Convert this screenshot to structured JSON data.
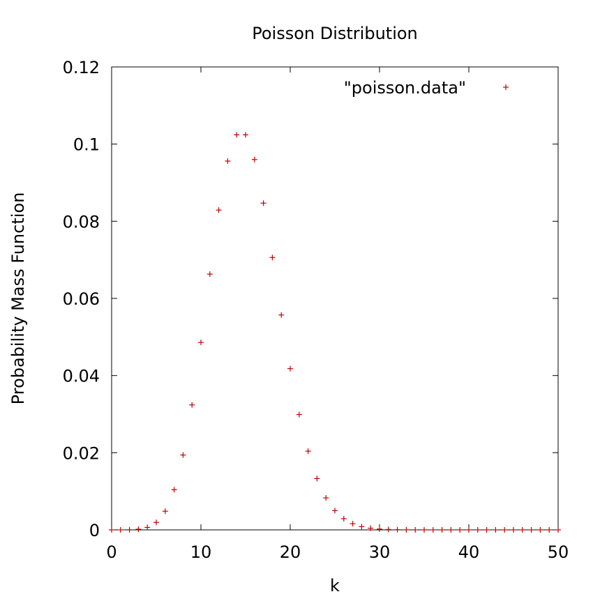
{
  "chart_data": {
    "type": "scatter",
    "title": "Poisson Distribution",
    "xlabel": "k",
    "ylabel": "Probability Mass Function",
    "xlim": [
      0,
      50
    ],
    "ylim": [
      0,
      0.12
    ],
    "xticks": [
      0,
      10,
      20,
      30,
      40,
      50
    ],
    "xtick_labels": [
      "0",
      "10",
      "20",
      "30",
      "40",
      "50"
    ],
    "yticks": [
      0,
      0.02,
      0.04,
      0.06,
      0.08,
      0.1,
      0.12
    ],
    "ytick_labels": [
      "0",
      "0.02",
      "0.04",
      "0.06",
      "0.08",
      "0.1",
      "0.12"
    ],
    "grid": false,
    "legend_position": "top-right",
    "series": [
      {
        "name": "\"poisson.data\"",
        "color": "#c00000",
        "marker": "plus",
        "x": [
          0,
          1,
          2,
          3,
          4,
          5,
          6,
          7,
          8,
          9,
          10,
          11,
          12,
          13,
          14,
          15,
          16,
          17,
          18,
          19,
          20,
          21,
          22,
          23,
          24,
          25,
          26,
          27,
          28,
          29,
          30,
          31,
          32,
          33,
          34,
          35,
          36,
          37,
          38,
          39,
          40,
          41,
          42,
          43,
          44,
          45,
          46,
          47,
          48,
          49,
          50
        ],
        "y": [
          3e-07,
          4.6e-06,
          3.44e-05,
          0.000172,
          0.000645,
          0.00194,
          0.00484,
          0.0104,
          0.0194,
          0.0324,
          0.0486,
          0.0663,
          0.0829,
          0.0956,
          0.1024,
          0.1024,
          0.096,
          0.0847,
          0.0706,
          0.0557,
          0.0418,
          0.0299,
          0.0204,
          0.0133,
          0.0083,
          0.005,
          0.0029,
          0.0016,
          0.00085,
          0.00044,
          0.00022,
          0.00011,
          5e-05,
          2e-05,
          1e-05,
          4e-06,
          2e-06,
          7e-07,
          3e-07,
          1e-07,
          4e-08,
          1e-08,
          0,
          0,
          0,
          0,
          0,
          0,
          0,
          0,
          0
        ]
      }
    ]
  }
}
